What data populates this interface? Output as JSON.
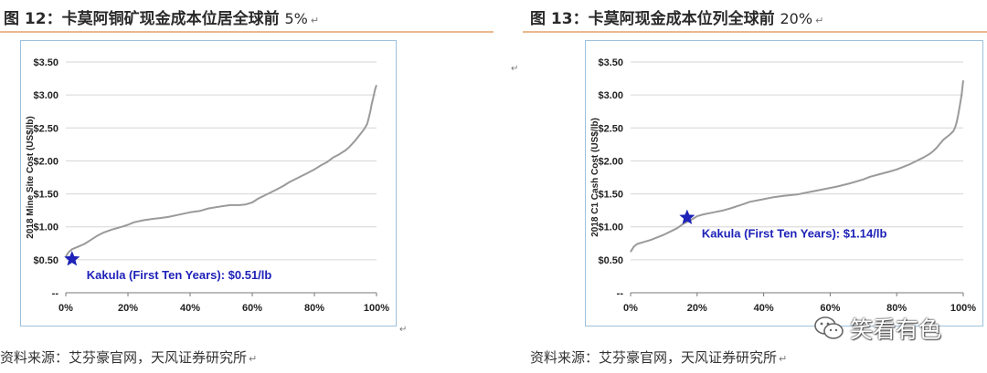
{
  "left": {
    "figure_title": "图 12：卡莫阿铜矿现金成本位居全球前",
    "figure_pct": "5%",
    "source": "资料来源：艾芬豪官网，天风证券研究所"
  },
  "right": {
    "figure_title": "图 13：卡莫阿现金成本位列全球前",
    "figure_pct": "20%",
    "source": "资料来源：艾芬豪官网，天风证券研究所"
  },
  "watermark": {
    "text": "笑看有色",
    "icon": "wechat-icon"
  },
  "return_mark": "↵",
  "colors": {
    "curve": "#9a9a9a",
    "star": "#1e22b8",
    "label": "#1e22b8",
    "grid": "#d6d6d6",
    "frame": "#9cc0dc",
    "rule": "#e9b88c"
  },
  "chart_data": [
    {
      "type": "line",
      "ylabel": "2018 Mine Site Cost (US$/lb)",
      "xlabel": "",
      "xlim": [
        0,
        100
      ],
      "ylim": [
        0,
        3.5
      ],
      "x_ticks": [
        "0%",
        "20%",
        "40%",
        "60%",
        "80%",
        "100%"
      ],
      "y_ticks": [
        "--",
        "$0.50",
        "$1.00",
        "$1.50",
        "$2.00",
        "$2.50",
        "$3.00",
        "$3.50"
      ],
      "grid": true,
      "series": [
        {
          "x": [
            0,
            1,
            2,
            4,
            6,
            8,
            10,
            12,
            15,
            18,
            20,
            22,
            25,
            28,
            30,
            33,
            36,
            40,
            43,
            46,
            50,
            53,
            56,
            58,
            60,
            62,
            65,
            68,
            70,
            72,
            75,
            78,
            80,
            82,
            84,
            86,
            88,
            90,
            91,
            92,
            93,
            94,
            95,
            96,
            97,
            97.5,
            98,
            98.5,
            99,
            99.5,
            100
          ],
          "y": [
            0.55,
            0.62,
            0.66,
            0.7,
            0.74,
            0.8,
            0.86,
            0.91,
            0.96,
            1.0,
            1.03,
            1.07,
            1.1,
            1.12,
            1.13,
            1.15,
            1.18,
            1.22,
            1.24,
            1.28,
            1.31,
            1.33,
            1.33,
            1.34,
            1.37,
            1.43,
            1.5,
            1.57,
            1.62,
            1.68,
            1.75,
            1.82,
            1.87,
            1.93,
            1.98,
            2.05,
            2.1,
            2.16,
            2.2,
            2.25,
            2.3,
            2.36,
            2.42,
            2.48,
            2.56,
            2.65,
            2.75,
            2.87,
            2.97,
            3.08,
            3.15
          ]
        }
      ],
      "annotation": {
        "label": "Kakula (First Ten Years): $0.51/lb",
        "x": 2,
        "y": 0.51,
        "marker": "star"
      }
    },
    {
      "type": "line",
      "ylabel": "2018 C1 Cash Cost (US$/lb)",
      "xlabel": "",
      "xlim": [
        0,
        100
      ],
      "ylim": [
        0,
        3.5
      ],
      "x_ticks": [
        "0%",
        "20%",
        "40%",
        "60%",
        "80%",
        "100%"
      ],
      "y_ticks": [
        "--",
        "$0.50",
        "$1.00",
        "$1.50",
        "$2.00",
        "$2.50",
        "$3.00",
        "$3.50"
      ],
      "grid": true,
      "series": [
        {
          "x": [
            0,
            1,
            2,
            4,
            6,
            8,
            10,
            12,
            14,
            16,
            18,
            20,
            22,
            25,
            28,
            30,
            33,
            36,
            40,
            43,
            46,
            50,
            54,
            58,
            62,
            66,
            70,
            72,
            75,
            78,
            80,
            82,
            84,
            86,
            88,
            90,
            91,
            92,
            93,
            94,
            95,
            96,
            97,
            97.5,
            98,
            98.5,
            99,
            99.5,
            100
          ],
          "y": [
            0.62,
            0.7,
            0.74,
            0.77,
            0.8,
            0.84,
            0.88,
            0.93,
            0.98,
            1.05,
            1.1,
            1.16,
            1.19,
            1.22,
            1.25,
            1.28,
            1.33,
            1.38,
            1.42,
            1.45,
            1.47,
            1.49,
            1.53,
            1.57,
            1.61,
            1.66,
            1.72,
            1.76,
            1.8,
            1.84,
            1.87,
            1.91,
            1.95,
            2.0,
            2.05,
            2.11,
            2.15,
            2.2,
            2.26,
            2.32,
            2.36,
            2.4,
            2.45,
            2.5,
            2.58,
            2.7,
            2.85,
            3.0,
            3.22
          ]
        }
      ],
      "annotation": {
        "label": "Kakula (First Ten Years): $1.14/lb",
        "x": 17,
        "y": 1.14,
        "marker": "star"
      }
    }
  ]
}
